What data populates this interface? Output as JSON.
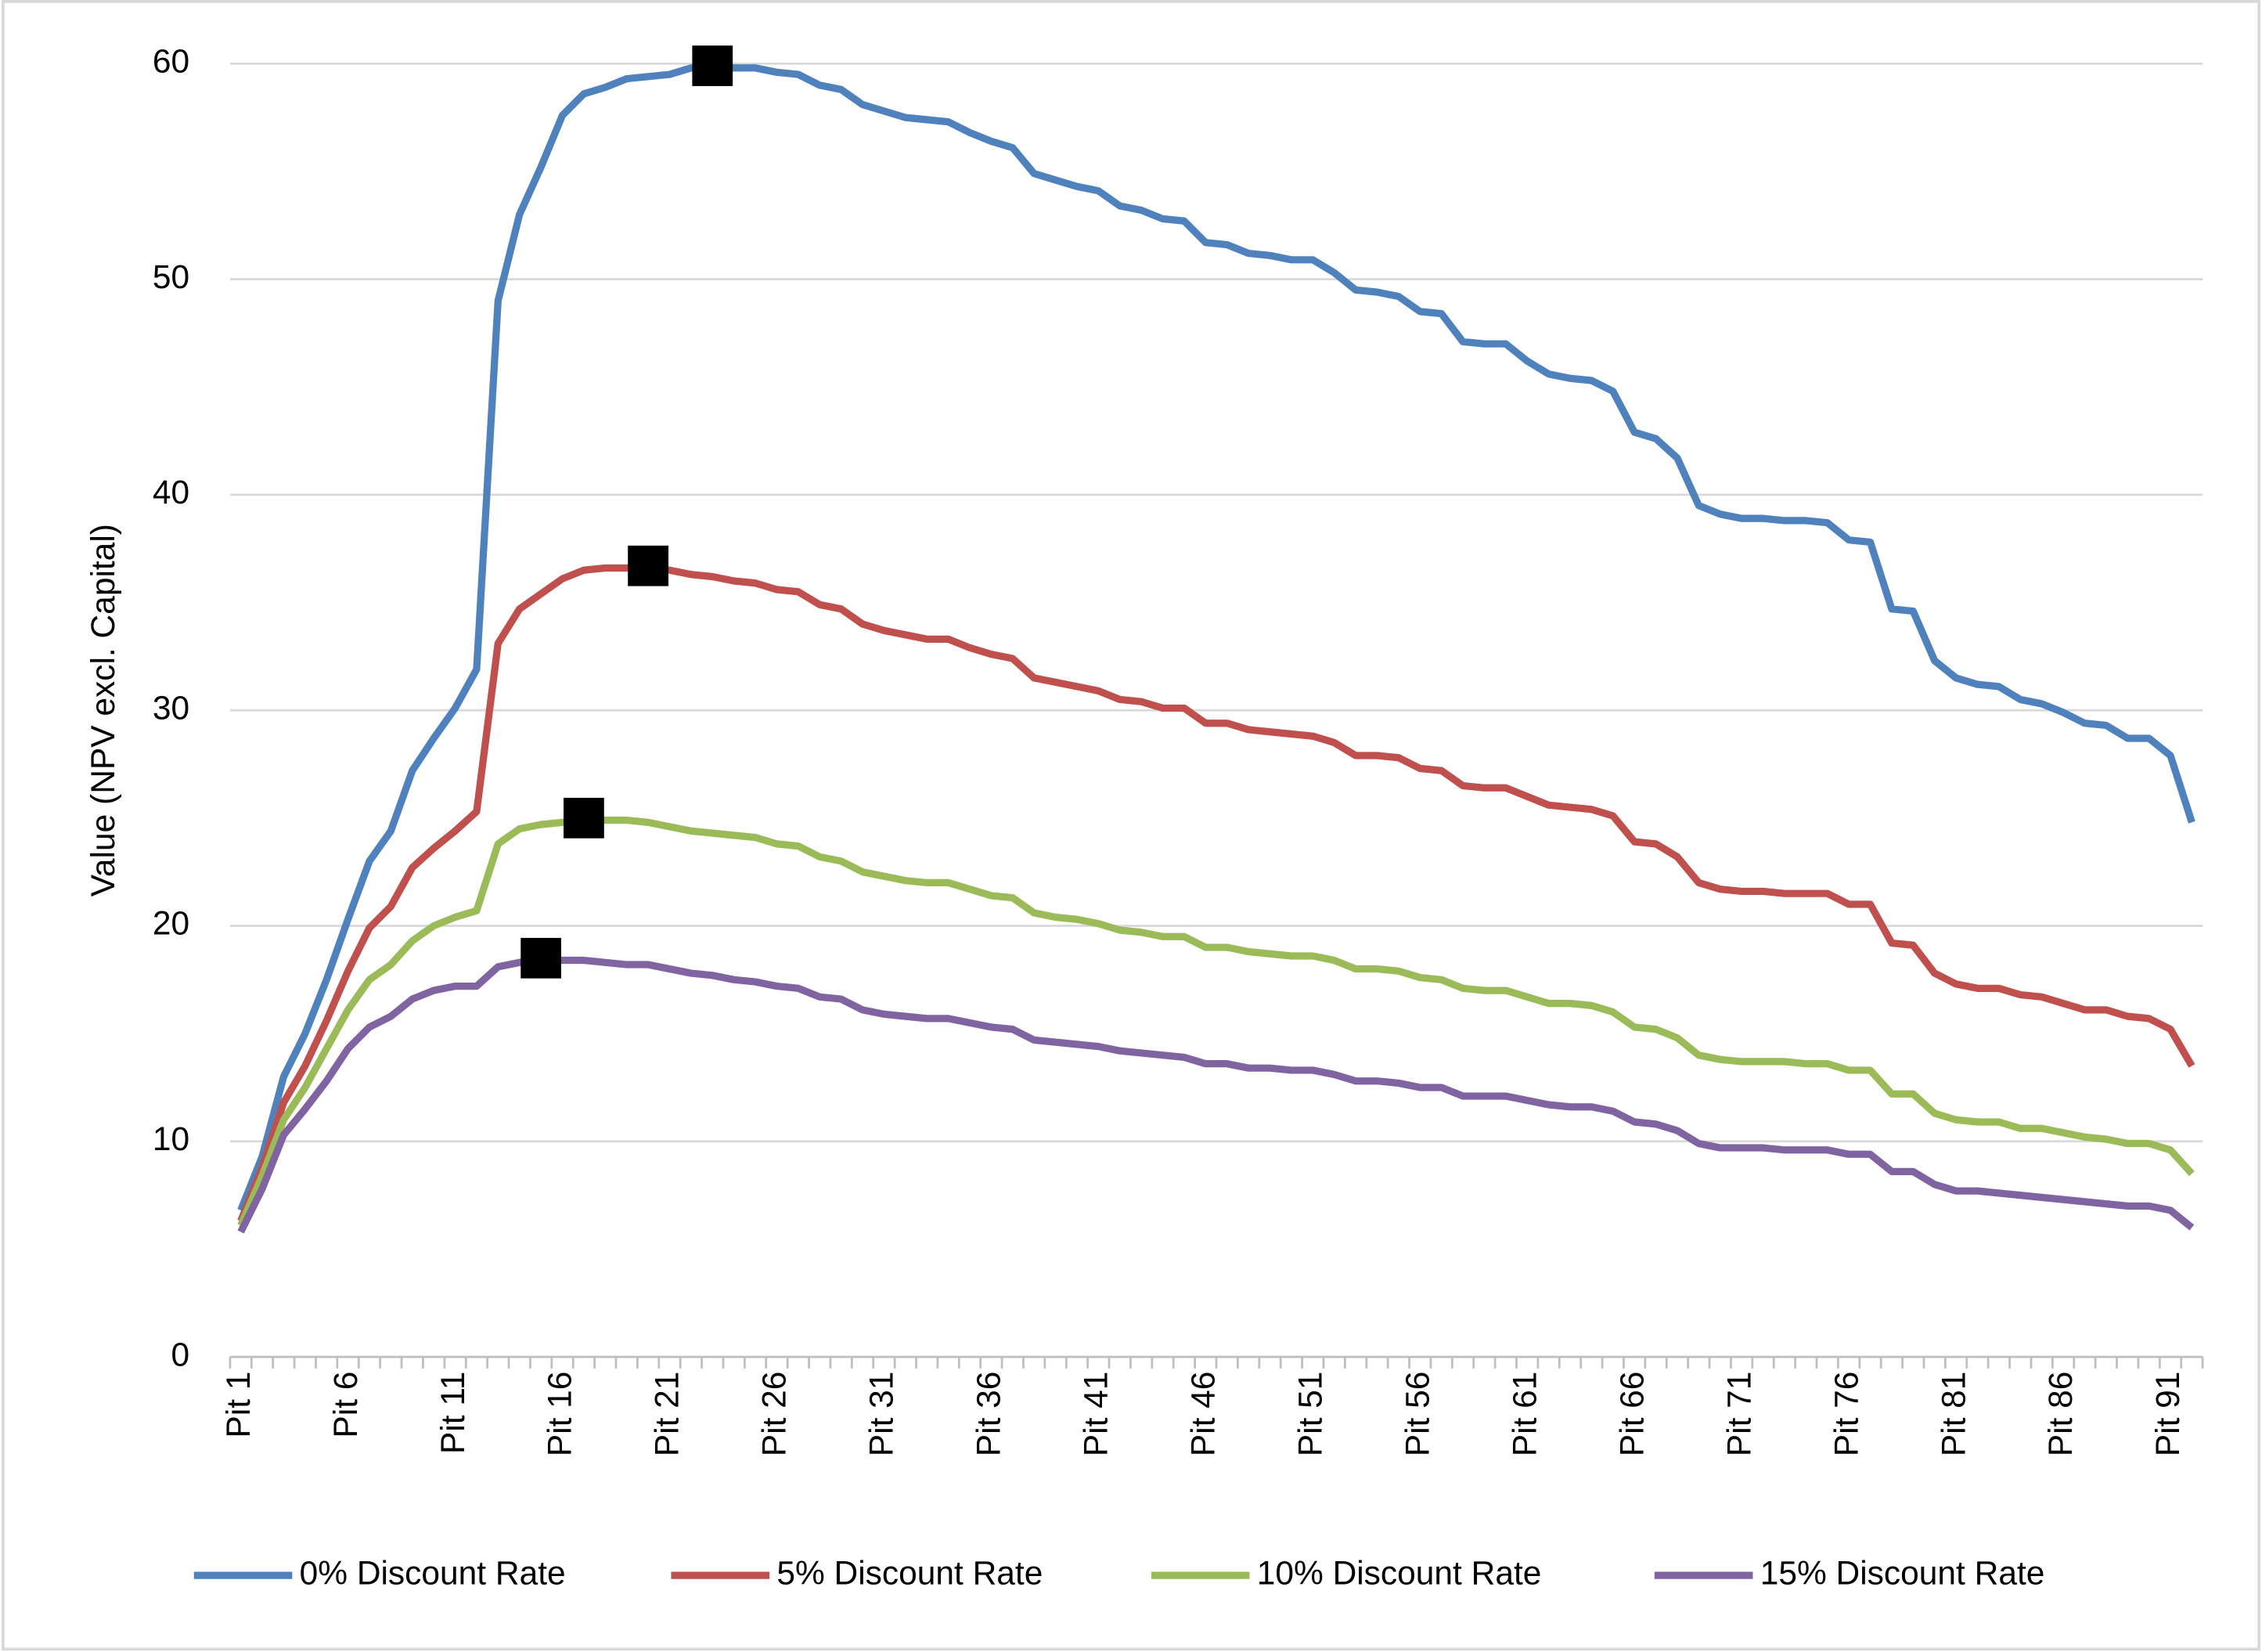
{
  "chart_data": {
    "type": "line",
    "y_label": "Value (NPV excl. Capital)",
    "categories": [
      "Pit 1",
      null,
      null,
      null,
      null,
      "Pit 6",
      null,
      null,
      null,
      null,
      "Pit 11",
      null,
      null,
      null,
      null,
      "Pit 16",
      null,
      null,
      null,
      null,
      "Pit 21",
      null,
      null,
      null,
      null,
      "Pit 26",
      null,
      null,
      null,
      null,
      "Pit 31",
      null,
      null,
      null,
      null,
      "Pit 36",
      null,
      null,
      null,
      null,
      "Pit 41",
      null,
      null,
      null,
      null,
      "Pit 46",
      null,
      null,
      null,
      null,
      "Pit 51",
      null,
      null,
      null,
      null,
      "Pit 56",
      null,
      null,
      null,
      null,
      "Pit 61",
      null,
      null,
      null,
      null,
      "Pit 66",
      null,
      null,
      null,
      null,
      "Pit 71",
      null,
      null,
      null,
      null,
      "Pit 76",
      null,
      null,
      null,
      null,
      "Pit 81",
      null,
      null,
      null,
      null,
      "Pit 86",
      null,
      null,
      null,
      null,
      "Pit 91",
      null
    ],
    "series": [
      {
        "name": "0% Discount Rate",
        "color": "#4f81bd",
        "values": [
          6.8,
          9.3,
          13.0,
          15.0,
          17.5,
          20.3,
          23.0,
          24.4,
          27.2,
          28.7,
          30.1,
          31.9,
          49.0,
          53.0,
          55.2,
          57.6,
          58.6,
          58.9,
          59.3,
          59.4,
          59.5,
          59.8,
          59.9,
          59.8,
          59.8,
          59.6,
          59.5,
          59.0,
          58.8,
          58.1,
          57.8,
          57.5,
          57.4,
          57.3,
          56.8,
          56.4,
          56.1,
          54.9,
          54.6,
          54.3,
          54.1,
          53.4,
          53.2,
          52.8,
          52.7,
          51.7,
          51.6,
          51.2,
          51.1,
          50.9,
          50.9,
          50.3,
          49.5,
          49.4,
          49.2,
          48.5,
          48.4,
          47.1,
          47.0,
          47.0,
          46.2,
          45.6,
          45.4,
          45.3,
          44.8,
          42.9,
          42.6,
          41.7,
          39.5,
          39.1,
          38.9,
          38.9,
          38.8,
          38.8,
          38.7,
          37.9,
          37.8,
          34.7,
          34.6,
          32.3,
          31.5,
          31.2,
          31.1,
          30.5,
          30.3,
          29.9,
          29.4,
          29.3,
          28.7,
          28.7,
          27.9,
          24.8
        ]
      },
      {
        "name": "5% Discount Rate",
        "color": "#c0504d",
        "values": [
          6.3,
          8.8,
          11.8,
          13.5,
          15.6,
          17.9,
          19.9,
          20.9,
          22.7,
          23.6,
          24.4,
          25.3,
          33.1,
          34.7,
          35.4,
          36.1,
          36.5,
          36.6,
          36.6,
          36.7,
          36.5,
          36.3,
          36.2,
          36.0,
          35.9,
          35.6,
          35.5,
          34.9,
          34.7,
          34.0,
          33.7,
          33.5,
          33.3,
          33.3,
          32.9,
          32.6,
          32.4,
          31.5,
          31.3,
          31.1,
          30.9,
          30.5,
          30.4,
          30.1,
          30.1,
          29.4,
          29.4,
          29.1,
          29.0,
          28.9,
          28.8,
          28.5,
          27.9,
          27.9,
          27.8,
          27.3,
          27.2,
          26.5,
          26.4,
          26.4,
          26.0,
          25.6,
          25.5,
          25.4,
          25.1,
          23.9,
          23.8,
          23.2,
          22.0,
          21.7,
          21.6,
          21.6,
          21.5,
          21.5,
          21.5,
          21.0,
          21.0,
          19.2,
          19.1,
          17.8,
          17.3,
          17.1,
          17.1,
          16.8,
          16.7,
          16.4,
          16.1,
          16.1,
          15.8,
          15.7,
          15.2,
          13.5
        ]
      },
      {
        "name": "10% Discount Rate",
        "color": "#9bbb59",
        "values": [
          6.1,
          8.4,
          11.0,
          12.5,
          14.3,
          16.1,
          17.5,
          18.2,
          19.3,
          20.0,
          20.4,
          20.7,
          23.8,
          24.5,
          24.7,
          24.8,
          25.0,
          24.9,
          24.9,
          24.8,
          24.6,
          24.4,
          24.3,
          24.2,
          24.1,
          23.8,
          23.7,
          23.2,
          23.0,
          22.5,
          22.3,
          22.1,
          22.0,
          22.0,
          21.7,
          21.4,
          21.3,
          20.6,
          20.4,
          20.3,
          20.1,
          19.8,
          19.7,
          19.5,
          19.5,
          19.0,
          19.0,
          18.8,
          18.7,
          18.6,
          18.6,
          18.4,
          18.0,
          18.0,
          17.9,
          17.6,
          17.5,
          17.1,
          17.0,
          17.0,
          16.7,
          16.4,
          16.4,
          16.3,
          16.0,
          15.3,
          15.2,
          14.8,
          14.0,
          13.8,
          13.7,
          13.7,
          13.7,
          13.6,
          13.6,
          13.3,
          13.3,
          12.2,
          12.2,
          11.3,
          11.0,
          10.9,
          10.9,
          10.6,
          10.6,
          10.4,
          10.2,
          10.1,
          9.9,
          9.9,
          9.6,
          8.5
        ]
      },
      {
        "name": "15% Discount Rate",
        "color": "#8064a2",
        "values": [
          5.8,
          7.8,
          10.3,
          11.5,
          12.8,
          14.3,
          15.3,
          15.8,
          16.6,
          17.0,
          17.2,
          17.2,
          18.1,
          18.3,
          18.5,
          18.4,
          18.4,
          18.3,
          18.2,
          18.2,
          18.0,
          17.8,
          17.7,
          17.5,
          17.4,
          17.2,
          17.1,
          16.7,
          16.6,
          16.1,
          15.9,
          15.8,
          15.7,
          15.7,
          15.5,
          15.3,
          15.2,
          14.7,
          14.6,
          14.5,
          14.4,
          14.2,
          14.1,
          14.0,
          13.9,
          13.6,
          13.6,
          13.4,
          13.4,
          13.3,
          13.3,
          13.1,
          12.8,
          12.8,
          12.7,
          12.5,
          12.5,
          12.1,
          12.1,
          12.1,
          11.9,
          11.7,
          11.6,
          11.6,
          11.4,
          10.9,
          10.8,
          10.5,
          9.9,
          9.7,
          9.7,
          9.7,
          9.6,
          9.6,
          9.6,
          9.4,
          9.4,
          8.6,
          8.6,
          8.0,
          7.7,
          7.7,
          7.6,
          7.5,
          7.4,
          7.3,
          7.2,
          7.1,
          7.0,
          7.0,
          6.8,
          6.0
        ]
      }
    ],
    "ylim": [
      0,
      60
    ],
    "yticks": [
      0,
      10,
      20,
      30,
      40,
      50,
      60
    ],
    "grid": true,
    "legend": "bottom",
    "mark_max": true,
    "marker_color": "#000000"
  }
}
